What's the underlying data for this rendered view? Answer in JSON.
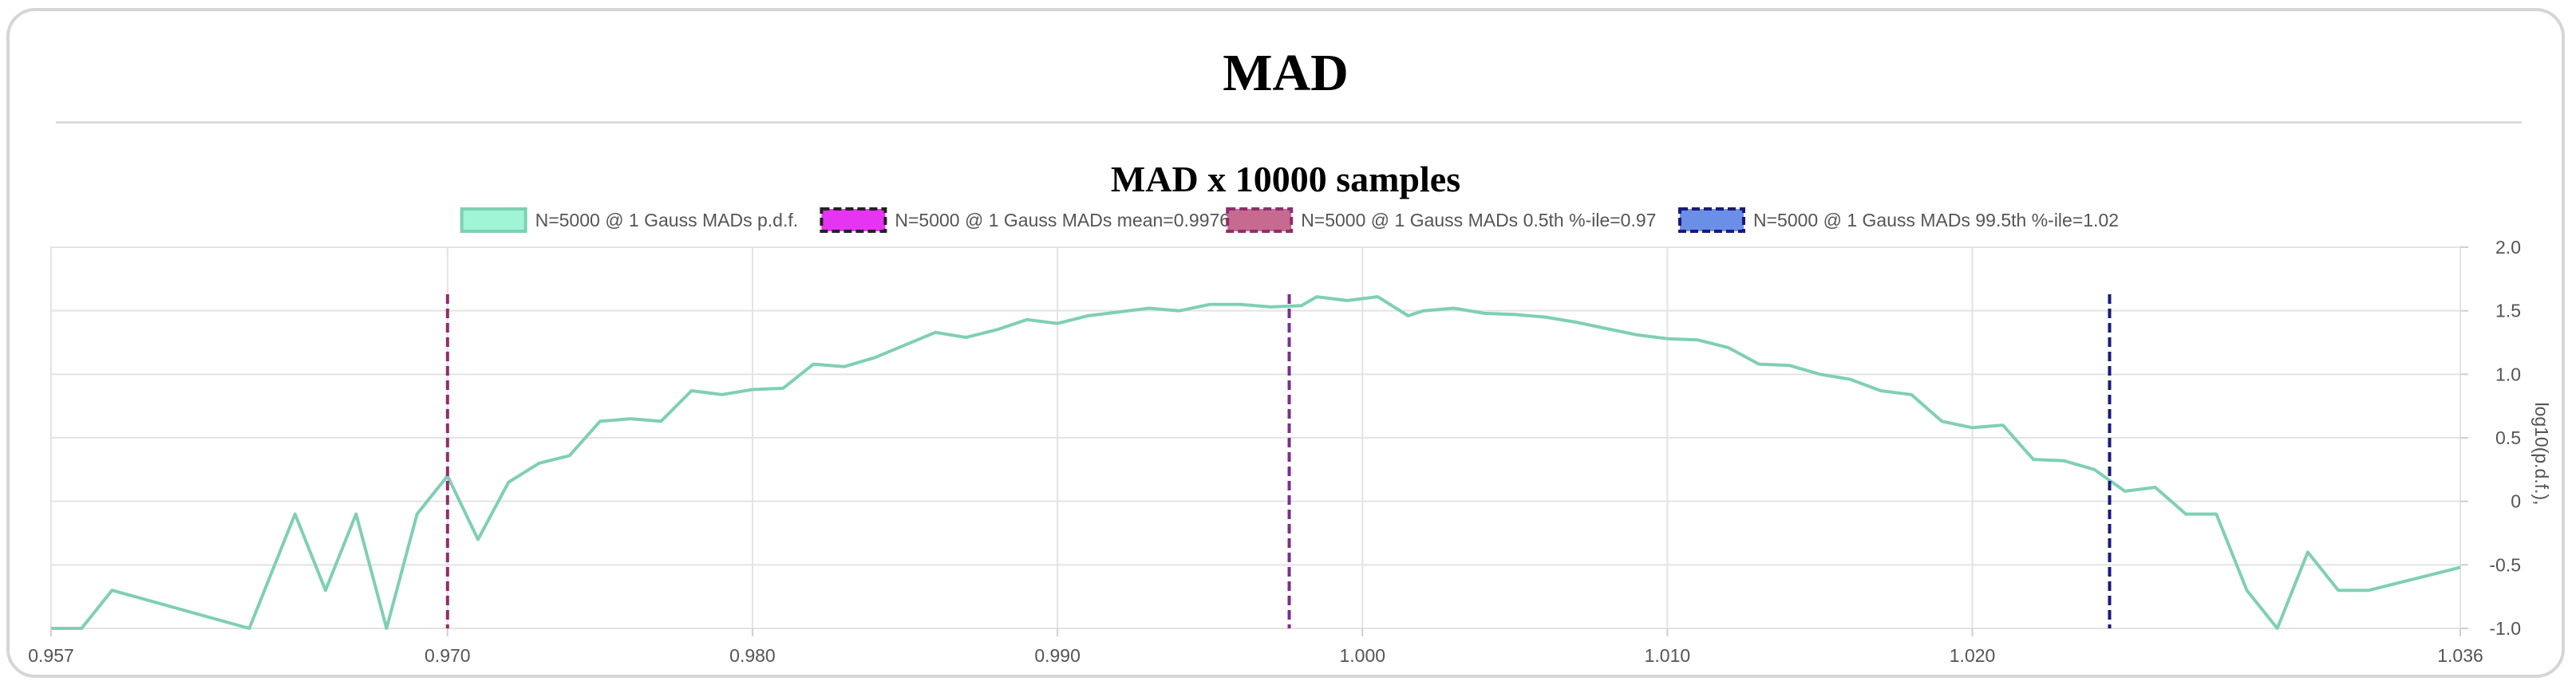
{
  "page": {
    "title": "MAD"
  },
  "chart_data": {
    "type": "line",
    "title": "MAD x 10000 samples",
    "xlabel": "",
    "ylabel": "log10(p.d.f.),",
    "xlim": [
      0.957,
      1.036
    ],
    "ylim": [
      -1.0,
      2.0
    ],
    "x_ticks": [
      "0.957",
      "0.970",
      "0.980",
      "0.990",
      "1.000",
      "1.010",
      "1.020",
      "1.036"
    ],
    "x_tick_values": [
      0.957,
      0.97,
      0.98,
      0.99,
      1.0,
      1.01,
      1.02,
      1.036
    ],
    "y_ticks": [
      "2.0",
      "1.5",
      "1.0",
      "0.5",
      "0",
      "-0.5",
      "-1.0"
    ],
    "y_tick_values": [
      2.0,
      1.5,
      1.0,
      0.5,
      0,
      -0.5,
      -1.0
    ],
    "grid": true,
    "legend_position": "top",
    "series": [
      {
        "name": "N=5000 @ 1 Gauss MADs p.d.f.",
        "color": "#7fcfb4",
        "fill": "#9ff5d6",
        "style": "solid",
        "points": [
          [
            0.957,
            -1.0
          ],
          [
            0.958,
            -1.0
          ],
          [
            0.959,
            -0.7
          ],
          [
            0.9635,
            -1.0
          ],
          [
            0.965,
            -0.1
          ],
          [
            0.966,
            -0.7
          ],
          [
            0.967,
            -0.1
          ],
          [
            0.968,
            -1.0
          ],
          [
            0.969,
            -0.1
          ],
          [
            0.97,
            0.2
          ],
          [
            0.971,
            -0.3
          ],
          [
            0.972,
            0.15
          ],
          [
            0.973,
            0.3
          ],
          [
            0.974,
            0.36
          ],
          [
            0.975,
            0.63
          ],
          [
            0.976,
            0.65
          ],
          [
            0.977,
            0.63
          ],
          [
            0.978,
            0.87
          ],
          [
            0.979,
            0.84
          ],
          [
            0.98,
            0.88
          ],
          [
            0.981,
            0.89
          ],
          [
            0.982,
            1.08
          ],
          [
            0.983,
            1.06
          ],
          [
            0.984,
            1.13
          ],
          [
            0.985,
            1.23
          ],
          [
            0.986,
            1.33
          ],
          [
            0.987,
            1.29
          ],
          [
            0.988,
            1.35
          ],
          [
            0.989,
            1.43
          ],
          [
            0.99,
            1.4
          ],
          [
            0.991,
            1.46
          ],
          [
            0.992,
            1.49
          ],
          [
            0.993,
            1.52
          ],
          [
            0.994,
            1.5
          ],
          [
            0.995,
            1.55
          ],
          [
            0.996,
            1.55
          ],
          [
            0.997,
            1.53
          ],
          [
            0.998,
            1.54
          ],
          [
            0.9985,
            1.61
          ],
          [
            0.9995,
            1.58
          ],
          [
            1.0005,
            1.61
          ],
          [
            1.0015,
            1.46
          ],
          [
            1.002,
            1.5
          ],
          [
            1.003,
            1.52
          ],
          [
            1.004,
            1.48
          ],
          [
            1.005,
            1.47
          ],
          [
            1.006,
            1.45
          ],
          [
            1.007,
            1.41
          ],
          [
            1.008,
            1.36
          ],
          [
            1.009,
            1.31
          ],
          [
            1.01,
            1.28
          ],
          [
            1.011,
            1.27
          ],
          [
            1.012,
            1.21
          ],
          [
            1.013,
            1.08
          ],
          [
            1.014,
            1.07
          ],
          [
            1.015,
            1.0
          ],
          [
            1.016,
            0.96
          ],
          [
            1.017,
            0.87
          ],
          [
            1.018,
            0.84
          ],
          [
            1.019,
            0.63
          ],
          [
            1.02,
            0.58
          ],
          [
            1.021,
            0.6
          ],
          [
            1.022,
            0.33
          ],
          [
            1.023,
            0.32
          ],
          [
            1.024,
            0.25
          ],
          [
            1.025,
            0.08
          ],
          [
            1.026,
            0.11
          ],
          [
            1.027,
            -0.1
          ],
          [
            1.028,
            -0.1
          ],
          [
            1.029,
            -0.7
          ],
          [
            1.03,
            -1.0
          ],
          [
            1.031,
            -0.4
          ],
          [
            1.032,
            -0.7
          ],
          [
            1.033,
            -0.7
          ],
          [
            1.036,
            -0.52
          ]
        ]
      }
    ],
    "vertical_lines": [
      {
        "name": "N=5000 @ 1 Gauss MADs mean=0.9976",
        "x": 0.9976,
        "y_top": 1.63,
        "color": "#7a2f8e",
        "fill": "#e634f2",
        "border": "#222222"
      },
      {
        "name": "N=5000 @ 1 Gauss MADs 0.5th %-ile=0.97",
        "x": 0.97,
        "y_top": 1.63,
        "color": "#8e2f6b",
        "fill": "#c76a8f",
        "border": "#8e2f6b"
      },
      {
        "name": "N=5000 @ 1 Gauss MADs 99.5th %-ile=1.02",
        "x": 1.0245,
        "y_top": 1.63,
        "color": "#1a1a7a",
        "fill": "#6b8fe6",
        "border": "#1a1a7a"
      }
    ]
  }
}
